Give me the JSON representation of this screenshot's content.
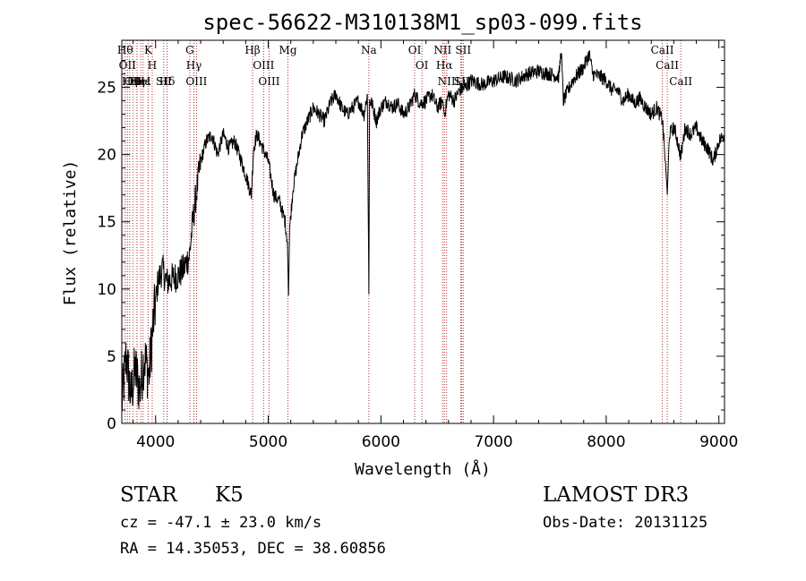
{
  "chart_data": {
    "type": "line",
    "title": "spec-56622-M310138M1_sp03-099.fits",
    "xlabel": "Wavelength (Å)",
    "ylabel": "Flux (relative)",
    "xlim": [
      3700,
      9050
    ],
    "ylim": [
      0,
      28.5
    ],
    "xticks": [
      4000,
      5000,
      6000,
      7000,
      8000,
      9000
    ],
    "yticks": [
      0,
      5,
      10,
      15,
      20,
      25
    ],
    "grid": false,
    "series": [
      {
        "x": [
          3700,
          3740,
          3780,
          3820,
          3860,
          3900,
          3940,
          3980,
          4020,
          4060,
          4100,
          4150,
          4200,
          4250,
          4300,
          4330,
          4360,
          4400,
          4450,
          4500,
          4550,
          4600,
          4650,
          4700,
          4750,
          4800,
          4850,
          4870,
          4900,
          4950,
          5000,
          5050,
          5100,
          5150,
          5170,
          5180,
          5190,
          5220,
          5260,
          5300,
          5350,
          5400,
          5450,
          5500,
          5550,
          5600,
          5650,
          5700,
          5750,
          5800,
          5850,
          5880,
          5893,
          5900,
          5920,
          5960,
          6000,
          6050,
          6100,
          6150,
          6200,
          6250,
          6300,
          6350,
          6400,
          6450,
          6500,
          6550,
          6563,
          6600,
          6650,
          6700,
          6750,
          6800,
          6900,
          7000,
          7100,
          7200,
          7300,
          7400,
          7500,
          7580,
          7600,
          7620,
          7700,
          7800,
          7850,
          7880,
          7950,
          8000,
          8050,
          8100,
          8150,
          8200,
          8250,
          8300,
          8350,
          8400,
          8450,
          8500,
          8520,
          8542,
          8560,
          8600,
          8620,
          8662,
          8700,
          8750,
          8800,
          8850,
          8900,
          8950,
          9000,
          9050
        ],
        "y": [
          1.5,
          5.0,
          2.0,
          4.0,
          2.5,
          5.0,
          3.5,
          7.5,
          10.5,
          11.5,
          10.5,
          10.8,
          11.0,
          11.5,
          12.5,
          15.0,
          17.0,
          19.5,
          21.0,
          21.5,
          20.0,
          21.5,
          20.5,
          21.0,
          19.8,
          18.5,
          17.0,
          20.5,
          21.5,
          20.5,
          19.5,
          17.0,
          16.5,
          15.0,
          13.5,
          9.5,
          14.5,
          17.5,
          19.5,
          21.5,
          22.5,
          23.5,
          23.0,
          22.5,
          23.8,
          24.5,
          23.5,
          23.0,
          23.5,
          24.0,
          23.0,
          24.5,
          9.6,
          24.0,
          23.8,
          22.5,
          23.5,
          24.0,
          23.5,
          23.8,
          23.0,
          23.5,
          24.5,
          23.8,
          24.0,
          24.5,
          23.5,
          24.0,
          23.0,
          24.5,
          24.0,
          24.8,
          25.0,
          25.5,
          25.2,
          25.5,
          25.8,
          25.5,
          26.0,
          26.2,
          26.0,
          25.8,
          27.8,
          24.0,
          25.5,
          26.5,
          27.5,
          26.0,
          25.8,
          25.5,
          24.8,
          24.8,
          24.0,
          24.5,
          23.8,
          24.2,
          23.5,
          23.0,
          23.5,
          22.5,
          20.0,
          17.0,
          21.5,
          22.0,
          21.5,
          19.8,
          22.0,
          21.5,
          22.0,
          21.0,
          20.5,
          19.5,
          21.0,
          21.5
        ]
      }
    ],
    "lines": [
      {
        "x": 3730,
        "label": "Hθ"
      },
      {
        "x": 3750,
        "label": "OII"
      },
      {
        "x": 3770,
        "label": "Hη"
      },
      {
        "x": 3798,
        "label": "OII"
      },
      {
        "x": 3835,
        "label": "Hη"
      },
      {
        "x": 3869,
        "label": "HeI"
      },
      {
        "x": 3889,
        "label": "Hε"
      },
      {
        "x": 3934,
        "label": "K"
      },
      {
        "x": 3970,
        "label": "H"
      },
      {
        "x": 4072,
        "label": "SII"
      },
      {
        "x": 4102,
        "label": "Hδ"
      },
      {
        "x": 4304,
        "label": "G"
      },
      {
        "x": 4340,
        "label": "Hγ"
      },
      {
        "x": 4363,
        "label": "OIII"
      },
      {
        "x": 4861,
        "label": "Hβ"
      },
      {
        "x": 4959,
        "label": "OIII"
      },
      {
        "x": 5007,
        "label": "OIII"
      },
      {
        "x": 5175,
        "label": "Mg"
      },
      {
        "x": 5893,
        "label": "Na"
      },
      {
        "x": 6300,
        "label": "OI"
      },
      {
        "x": 6364,
        "label": "OI"
      },
      {
        "x": 6548,
        "label": "NII"
      },
      {
        "x": 6563,
        "label": "Hα"
      },
      {
        "x": 6583,
        "label": "NII"
      },
      {
        "x": 6708,
        "label": "Li"
      },
      {
        "x": 6717,
        "label": "SII"
      },
      {
        "x": 6731,
        "label": "SII"
      },
      {
        "x": 8498,
        "label": "CaII"
      },
      {
        "x": 8542,
        "label": "CaII"
      },
      {
        "x": 8662,
        "label": "CaII"
      }
    ]
  },
  "info": {
    "object_class": "STAR",
    "subclass": "K5",
    "survey": "LAMOST DR3",
    "cz": "cz = -47.1 ± 23.0 km/s",
    "obs_date": "Obs-Date: 20131125",
    "coords": "RA =  14.35053, DEC =  38.60856"
  },
  "colors": {
    "axis": "#000000",
    "spectrum": "#000000",
    "line_marker": "#b03030"
  }
}
